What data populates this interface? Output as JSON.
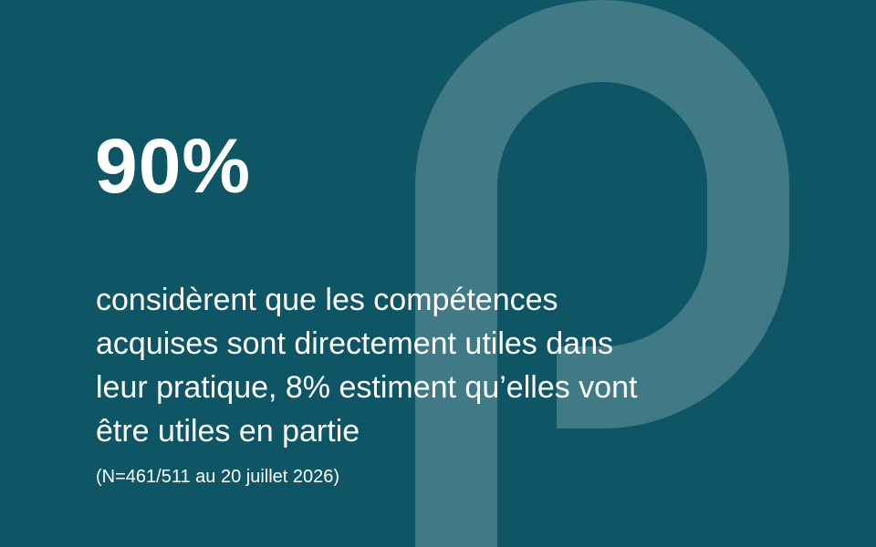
{
  "headline": "90%",
  "description": [
    "considèrent que les compétences",
    "acquises sont directement utiles dans",
    "leur pratique, 8% estiment qu’elles vont",
    "être utiles en partie"
  ],
  "footnote": "(N=461/511 au 20 juillet 2026)"
}
